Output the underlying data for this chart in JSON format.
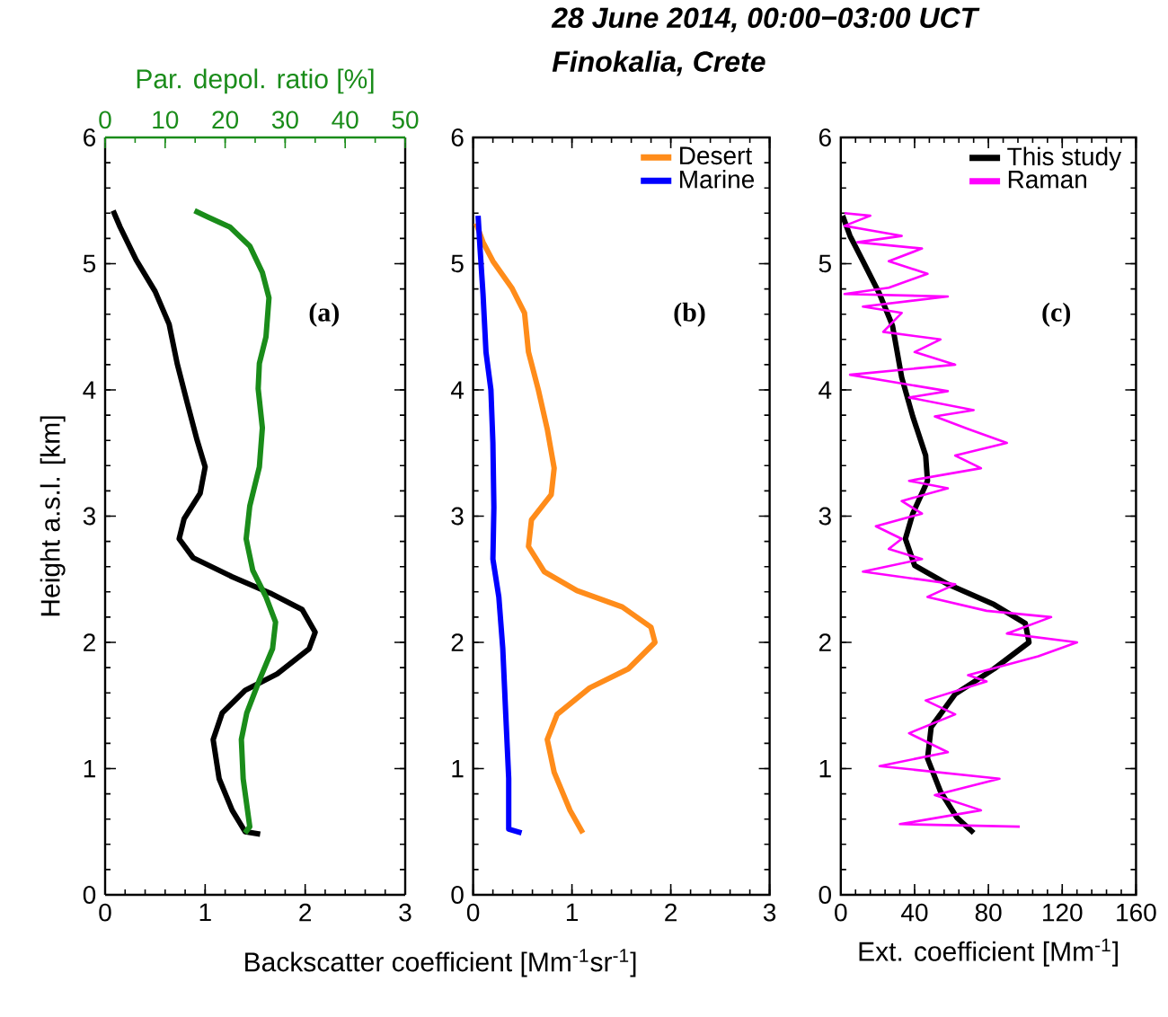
{
  "chart_data": [
    {
      "type": "line",
      "xlabel": "Backscatter coefficient [Mm$^{-1}$sr$^{-1}$]",
      "ylabel": "Height a.s.l. [km]",
      "x2label": "Par. depol. ratio [%]",
      "xlim": [
        0,
        3
      ],
      "xticks": [
        0,
        1,
        2,
        3
      ],
      "x2lim": [
        0,
        50
      ],
      "x2ticks": [
        0,
        10,
        20,
        30,
        40,
        50
      ],
      "ylim": [
        0,
        6
      ],
      "yticks": [
        0,
        1,
        2,
        3,
        4,
        5,
        6
      ],
      "annotations": [
        "(a)"
      ],
      "series": [
        {
          "color": "#000000",
          "x": [
            1.55,
            1.4,
            1.27,
            1.14,
            1.08,
            1.17,
            1.4,
            1.72,
            2.04,
            2.1,
            1.97,
            1.65,
            1.27,
            0.88,
            0.74,
            0.79,
            0.95,
            1.0,
            0.92,
            0.82,
            0.72,
            0.64,
            0.5,
            0.31,
            0.15,
            0.08
          ],
          "values": [
            0.48,
            0.5,
            0.67,
            0.92,
            1.23,
            1.44,
            1.62,
            1.75,
            1.95,
            2.08,
            2.26,
            2.39,
            2.52,
            2.67,
            2.82,
            2.98,
            3.18,
            3.39,
            3.6,
            3.9,
            4.21,
            4.52,
            4.78,
            5.03,
            5.29,
            5.42
          ]
        },
        {
          "color": "#1a8c1a",
          "axis": "x2",
          "x": [
            23.3,
            24.1,
            23.0,
            22.7,
            23.6,
            25.7,
            27.9,
            28.4,
            26.8,
            24.6,
            23.5,
            24.1,
            25.7,
            26.2,
            25.5,
            25.7,
            26.8,
            27.3,
            26.2,
            24.1,
            20.8,
            17.1,
            14.9
          ],
          "values": [
            0.49,
            0.54,
            0.92,
            1.23,
            1.44,
            1.7,
            1.95,
            2.16,
            2.36,
            2.57,
            2.82,
            3.08,
            3.39,
            3.7,
            4.01,
            4.21,
            4.42,
            4.73,
            4.93,
            5.14,
            5.29,
            5.37,
            5.42
          ]
        }
      ]
    },
    {
      "type": "line",
      "title": "28 June 2014, 00:00−03:00 UCT",
      "subtitle": "Finokalia, Crete",
      "xlim": [
        0,
        3
      ],
      "xticks": [
        0,
        1,
        2,
        3
      ],
      "ylim": [
        0,
        6
      ],
      "yticks": [
        0,
        1,
        2,
        3,
        4,
        5,
        6
      ],
      "legend": "top right",
      "annotations": [
        "(b)"
      ],
      "series": [
        {
          "name": "Desert",
          "color": "#ff8c1a",
          "x": [
            1.11,
            0.98,
            0.82,
            0.75,
            0.85,
            1.18,
            1.57,
            1.84,
            1.8,
            1.51,
            1.05,
            0.72,
            0.56,
            0.59,
            0.79,
            0.82,
            0.75,
            0.66,
            0.56,
            0.52,
            0.39,
            0.2,
            0.1,
            0.03
          ],
          "values": [
            0.49,
            0.67,
            0.97,
            1.23,
            1.43,
            1.64,
            1.79,
            2.0,
            2.12,
            2.28,
            2.41,
            2.56,
            2.76,
            2.97,
            3.17,
            3.38,
            3.69,
            4.0,
            4.3,
            4.61,
            4.81,
            5.02,
            5.17,
            5.32
          ]
        },
        {
          "name": "Marine",
          "color": "#0000ff",
          "x": [
            0.49,
            0.36,
            0.36,
            0.33,
            0.3,
            0.26,
            0.2,
            0.21,
            0.2,
            0.18,
            0.13,
            0.1,
            0.07,
            0.05
          ],
          "values": [
            0.49,
            0.52,
            0.92,
            1.43,
            1.95,
            2.36,
            2.66,
            3.07,
            3.58,
            4.0,
            4.3,
            4.76,
            5.12,
            5.38
          ]
        }
      ]
    },
    {
      "type": "line",
      "xlabel": "Ext. coefficient [Mm$^{-1}$]",
      "xlim": [
        0,
        160
      ],
      "xticks": [
        0,
        40,
        80,
        120,
        160
      ],
      "ylim": [
        0,
        6
      ],
      "yticks": [
        0,
        1,
        2,
        3,
        4,
        5,
        6
      ],
      "legend": "top right",
      "annotations": [
        "(c)"
      ],
      "series": [
        {
          "name": "This study",
          "color": "#000000",
          "x": [
            72,
            63,
            54,
            47,
            49,
            62,
            83,
            102,
            100,
            83,
            58,
            40,
            35,
            39,
            47,
            46,
            39,
            33,
            28,
            21,
            12,
            5,
            1
          ],
          "values": [
            0.49,
            0.61,
            0.82,
            1.08,
            1.33,
            1.59,
            1.79,
            2.0,
            2.15,
            2.3,
            2.46,
            2.61,
            2.82,
            3.02,
            3.28,
            3.48,
            3.79,
            4.1,
            4.51,
            4.76,
            5.02,
            5.22,
            5.38
          ]
        },
        {
          "name": "Raman",
          "color": "#ff00ff",
          "x": [
            97,
            32,
            76,
            51,
            86,
            21,
            58,
            37,
            62,
            46,
            79,
            69,
            107,
            128,
            90,
            114,
            79,
            47,
            62,
            12,
            44,
            26,
            33,
            19,
            44,
            33,
            58,
            37,
            76,
            62,
            90,
            69,
            51,
            72,
            37,
            58,
            5,
            62,
            40,
            54,
            23,
            33,
            12,
            58,
            2,
            26,
            47,
            26,
            44,
            9,
            33,
            2,
            16,
            2
          ],
          "values": [
            0.54,
            0.56,
            0.67,
            0.79,
            0.92,
            1.02,
            1.13,
            1.28,
            1.43,
            1.54,
            1.69,
            1.74,
            1.89,
            2.0,
            2.07,
            2.2,
            2.25,
            2.36,
            2.46,
            2.56,
            2.66,
            2.74,
            2.82,
            2.92,
            3.02,
            3.12,
            3.22,
            3.28,
            3.38,
            3.48,
            3.58,
            3.69,
            3.79,
            3.84,
            3.94,
            3.99,
            4.12,
            4.2,
            4.3,
            4.4,
            4.46,
            4.61,
            4.66,
            4.74,
            4.76,
            4.81,
            4.92,
            5.02,
            5.12,
            5.17,
            5.22,
            5.3,
            5.38,
            5.4
          ]
        }
      ]
    }
  ]
}
